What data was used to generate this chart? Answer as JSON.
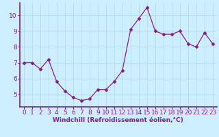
{
  "x": [
    0,
    1,
    2,
    3,
    4,
    5,
    6,
    7,
    8,
    9,
    10,
    11,
    12,
    13,
    14,
    15,
    16,
    17,
    18,
    19,
    20,
    21,
    22,
    23
  ],
  "y": [
    7.0,
    7.0,
    6.6,
    7.2,
    5.8,
    5.2,
    4.8,
    4.6,
    4.7,
    5.3,
    5.3,
    5.8,
    6.5,
    9.1,
    9.8,
    10.5,
    9.0,
    8.8,
    8.8,
    9.0,
    8.2,
    8.0,
    8.9,
    8.2
  ],
  "line_color": "#8b1a8b",
  "marker": "D",
  "marker_size": 2.5,
  "bg_color": "#cceeff",
  "grid_color": "#aadddd",
  "xlabel": "Windchill (Refroidissement éolien,°C)",
  "xlabel_fontsize": 6.5,
  "tick_fontsize": 6.5,
  "ylim": [
    4.2,
    10.8
  ],
  "xlim": [
    -0.5,
    23.5
  ],
  "yticks": [
    5,
    6,
    7,
    8,
    9,
    10
  ],
  "xticks": [
    0,
    1,
    2,
    3,
    4,
    5,
    6,
    7,
    8,
    9,
    10,
    11,
    12,
    13,
    14,
    15,
    16,
    17,
    18,
    19,
    20,
    21,
    22,
    23
  ],
  "spine_color": "#8b1a8b",
  "axis_linewidth": 1.2
}
